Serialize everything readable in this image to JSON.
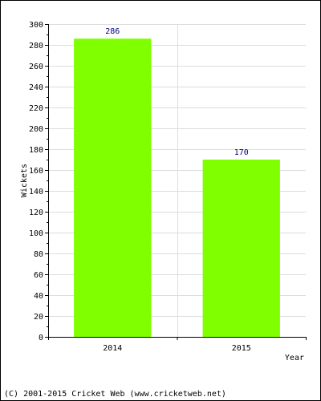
{
  "chart_data": {
    "type": "bar",
    "categories": [
      "2014",
      "2015"
    ],
    "values": [
      286,
      170
    ],
    "data_labels": [
      "286",
      "170"
    ],
    "title": "",
    "xlabel": "Year",
    "ylabel": "Wickets",
    "ylim": [
      0,
      300
    ],
    "ytick_step": 20,
    "grid": true,
    "bar_color": "#80ff00",
    "label_color": "#000080"
  },
  "footer": "(C) 2001-2015 Cricket Web (www.cricketweb.net)"
}
